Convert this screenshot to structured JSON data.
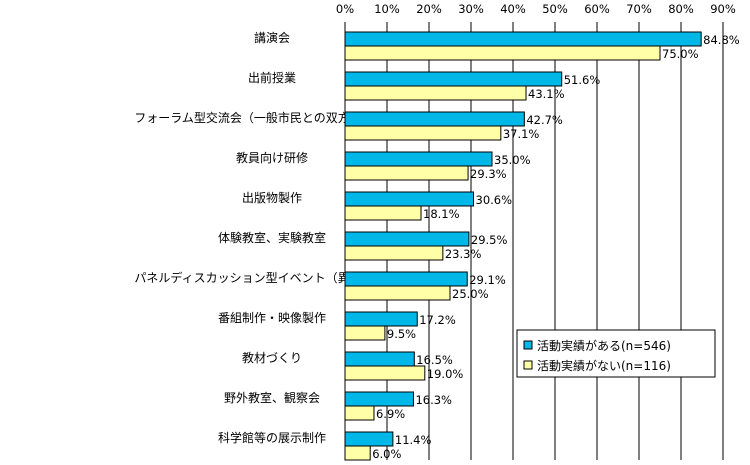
{
  "chart_data": {
    "type": "bar",
    "orientation": "horizontal",
    "categories": [
      "講演会",
      "出前授業",
      "フォーラム型交流会（一般市民との双方向の交流）",
      "教員向け研修",
      "出版物製作",
      "体験教室、実験教室",
      "パネルディスカッション型イベント（異分野交流）",
      "番組制作・映像製作",
      "教材づくり",
      "野外教室、観察会",
      "科学館等の展示制作"
    ],
    "series": [
      {
        "name": "活動実績がある(n=546)",
        "color": "#00B8E8",
        "values": [
          84.8,
          51.6,
          42.7,
          35.0,
          30.6,
          29.5,
          29.1,
          17.2,
          16.5,
          16.3,
          11.4
        ],
        "labels": [
          "84.8%",
          "51.6%",
          "42.7%",
          "35.0%",
          "30.6%",
          "29.5%",
          "29.1%",
          "17.2%",
          "16.5%",
          "16.3%",
          "11.4%"
        ]
      },
      {
        "name": "活動実績がない(n=116)",
        "color": "#FFFFA8",
        "values": [
          75.0,
          43.1,
          37.1,
          29.3,
          18.1,
          23.3,
          25.0,
          9.5,
          19.0,
          6.9,
          6.0
        ],
        "labels": [
          "75.0%",
          "43.1%",
          "37.1%",
          "29.3%",
          "18.1%",
          "23.3%",
          "25.0%",
          "9.5%",
          "19.0%",
          "6.9%",
          "6.0%"
        ]
      }
    ],
    "xlim": [
      0,
      90
    ],
    "ticks": [
      0,
      10,
      20,
      30,
      40,
      50,
      60,
      70,
      80,
      90
    ],
    "tick_labels": [
      "0%",
      "10%",
      "20%",
      "30%",
      "40%",
      "50%",
      "60%",
      "70%",
      "80%",
      "90%"
    ],
    "grid": true,
    "legend_position": "lower-right"
  }
}
